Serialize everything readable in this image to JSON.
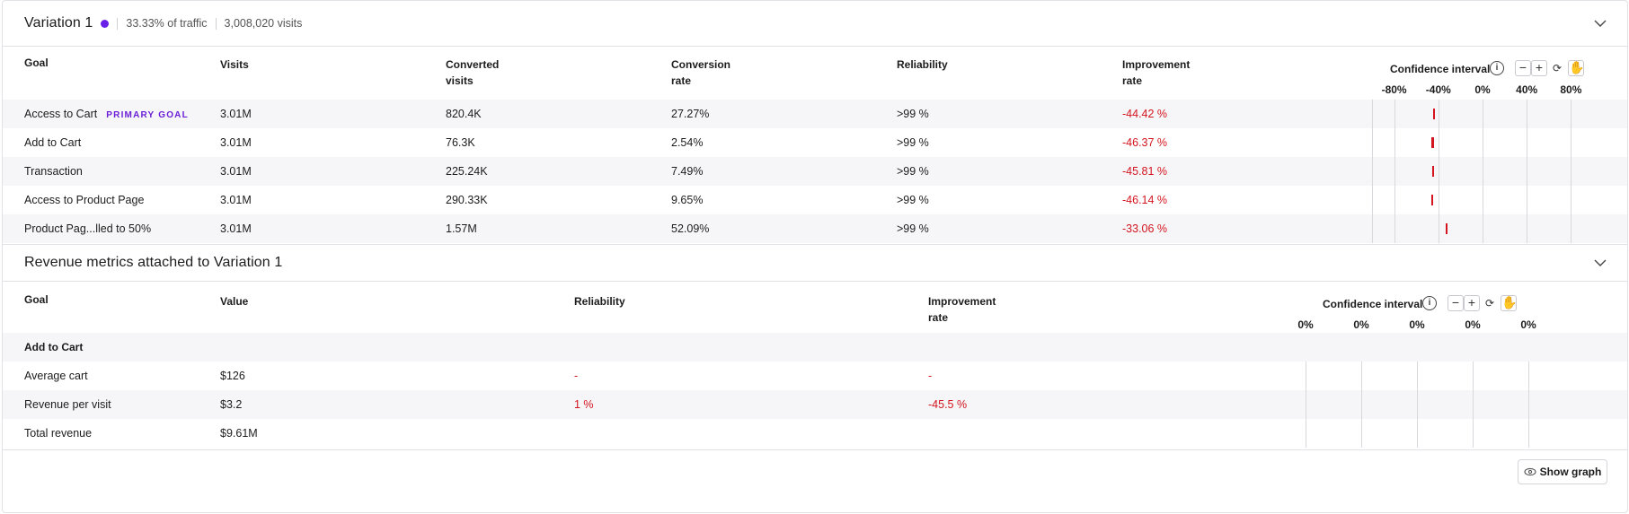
{
  "variation": {
    "title": "Variation 1",
    "dot_color": "#6a1fe8",
    "traffic": "33.33% of traffic",
    "visits": "3,008,020 visits"
  },
  "goals_table": {
    "headers": {
      "goal": "Goal",
      "visits": "Visits",
      "converted_1": "Converted",
      "converted_2": "visits",
      "conversion_1": "Conversion",
      "conversion_2": "rate",
      "reliability": "Reliability",
      "improvement_1": "Improvement",
      "improvement_2": "rate"
    },
    "confidence_label": "Confidence interval",
    "ticks": [
      "-80%",
      "-40%",
      "0%",
      "40%",
      "80%"
    ],
    "rows": [
      {
        "goal": "Access to Cart",
        "badge": "PRIMARY GOAL",
        "visits": "3.01M",
        "converted": "820.4K",
        "rate": "27.27%",
        "reliability": ">99 %",
        "improvement": "-44.42 %"
      },
      {
        "goal": "Add to Cart",
        "badge": "",
        "visits": "3.01M",
        "converted": "76.3K",
        "rate": "2.54%",
        "reliability": ">99 %",
        "improvement": "-46.37 %"
      },
      {
        "goal": "Transaction",
        "badge": "",
        "visits": "3.01M",
        "converted": "225.24K",
        "rate": "7.49%",
        "reliability": ">99 %",
        "improvement": "-45.81 %"
      },
      {
        "goal": "Access to Product Page",
        "badge": "",
        "visits": "3.01M",
        "converted": "290.33K",
        "rate": "9.65%",
        "reliability": ">99 %",
        "improvement": "-46.14 %"
      },
      {
        "goal": "Product Pag...lled to 50%",
        "badge": "",
        "visits": "3.01M",
        "converted": "1.57M",
        "rate": "52.09%",
        "reliability": ">99 %",
        "improvement": "-33.06 %"
      }
    ]
  },
  "revenue": {
    "title": "Revenue metrics attached to Variation 1",
    "headers": {
      "goal": "Goal",
      "value": "Value",
      "reliability": "Reliability",
      "improvement_1": "Improvement",
      "improvement_2": "rate"
    },
    "confidence_label": "Confidence interval",
    "ticks": [
      "0%",
      "0%",
      "0%",
      "0%",
      "0%"
    ],
    "group_label": "Add to Cart",
    "rows": [
      {
        "goal": "Average cart",
        "value": "$126",
        "reliability": "-",
        "improvement": "-"
      },
      {
        "goal": "Revenue per visit",
        "value": "$3.2",
        "reliability": "1 %",
        "improvement": "-45.5 %"
      },
      {
        "goal": "Total revenue",
        "value": "$9.61M",
        "reliability": "",
        "improvement": ""
      }
    ]
  },
  "show_graph_label": "Show graph",
  "colors": {
    "negative": "#d3151f",
    "accent": "#6a1fd6"
  }
}
